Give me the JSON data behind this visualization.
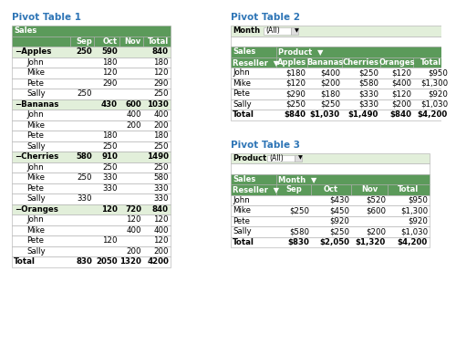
{
  "title_color": "#2E75B6",
  "green_dark": "#5B9A5A",
  "green_light": "#E2EFDA",
  "white": "#FFFFFF",
  "border": "#9BBB59",
  "border_light": "#C6C6C6",
  "pt1_title": "Pivot Table 1",
  "pt2_title": "Pivot Table 2",
  "pt3_title": "Pivot Table 3",
  "pt1_groups": [
    {
      "name": "Apples",
      "sep": "250",
      "oct": "590",
      "nov": "",
      "total": "840",
      "rows": [
        {
          "name": "John",
          "sep": "",
          "oct": "180",
          "nov": "",
          "total": "180"
        },
        {
          "name": "Mike",
          "sep": "",
          "oct": "120",
          "nov": "",
          "total": "120"
        },
        {
          "name": "Pete",
          "sep": "",
          "oct": "290",
          "nov": "",
          "total": "290"
        },
        {
          "name": "Sally",
          "sep": "250",
          "oct": "",
          "nov": "",
          "total": "250"
        }
      ]
    },
    {
      "name": "Bananas",
      "sep": "",
      "oct": "430",
      "nov": "600",
      "total": "1030",
      "rows": [
        {
          "name": "John",
          "sep": "",
          "oct": "",
          "nov": "400",
          "total": "400"
        },
        {
          "name": "Mike",
          "sep": "",
          "oct": "",
          "nov": "200",
          "total": "200"
        },
        {
          "name": "Pete",
          "sep": "",
          "oct": "180",
          "nov": "",
          "total": "180"
        },
        {
          "name": "Sally",
          "sep": "",
          "oct": "250",
          "nov": "",
          "total": "250"
        }
      ]
    },
    {
      "name": "Cherries",
      "sep": "580",
      "oct": "910",
      "nov": "",
      "total": "1490",
      "rows": [
        {
          "name": "John",
          "sep": "",
          "oct": "250",
          "nov": "",
          "total": "250"
        },
        {
          "name": "Mike",
          "sep": "250",
          "oct": "330",
          "nov": "",
          "total": "580"
        },
        {
          "name": "Pete",
          "sep": "",
          "oct": "330",
          "nov": "",
          "total": "330"
        },
        {
          "name": "Sally",
          "sep": "330",
          "oct": "",
          "nov": "",
          "total": "330"
        }
      ]
    },
    {
      "name": "Oranges",
      "sep": "",
      "oct": "120",
      "nov": "720",
      "total": "840",
      "rows": [
        {
          "name": "John",
          "sep": "",
          "oct": "",
          "nov": "120",
          "total": "120"
        },
        {
          "name": "Mike",
          "sep": "",
          "oct": "",
          "nov": "400",
          "total": "400"
        },
        {
          "name": "Pete",
          "sep": "",
          "oct": "120",
          "nov": "",
          "total": "120"
        },
        {
          "name": "Sally",
          "sep": "",
          "oct": "",
          "nov": "200",
          "total": "200"
        }
      ]
    }
  ],
  "pt1_total": {
    "sep": "830",
    "oct": "2050",
    "nov": "1320",
    "total": "4200"
  },
  "pt2_filter_label": "Month",
  "pt2_filter_val": "(All)",
  "pt2_col1": "Product",
  "pt2_rows": [
    {
      "name": "John",
      "apples": "$180",
      "bananas": "$400",
      "cherries": "$250",
      "oranges": "$120",
      "total": "$950"
    },
    {
      "name": "Mike",
      "apples": "$120",
      "bananas": "$200",
      "cherries": "$580",
      "oranges": "$400",
      "total": "$1,300"
    },
    {
      "name": "Pete",
      "apples": "$290",
      "bananas": "$180",
      "cherries": "$330",
      "oranges": "$120",
      "total": "$920"
    },
    {
      "name": "Sally",
      "apples": "$250",
      "bananas": "$250",
      "cherries": "$330",
      "oranges": "$200",
      "total": "$1,030"
    }
  ],
  "pt2_total": {
    "apples": "$840",
    "bananas": "$1,030",
    "cherries": "$1,490",
    "oranges": "$840",
    "total": "$4,200"
  },
  "pt3_filter_label": "Product",
  "pt3_filter_val": "(All)",
  "pt3_col1": "Month",
  "pt3_rows": [
    {
      "name": "John",
      "sep": "",
      "oct": "$430",
      "nov": "$520",
      "total": "$950"
    },
    {
      "name": "Mike",
      "sep": "$250",
      "oct": "$450",
      "nov": "$600",
      "total": "$1,300"
    },
    {
      "name": "Pete",
      "sep": "",
      "oct": "$920",
      "nov": "",
      "total": "$920"
    },
    {
      "name": "Sally",
      "sep": "$580",
      "oct": "$250",
      "nov": "$200",
      "total": "$1,030"
    }
  ],
  "pt3_total": {
    "sep": "$830",
    "oct": "$2,050",
    "nov": "$1,320",
    "total": "$4,200"
  }
}
